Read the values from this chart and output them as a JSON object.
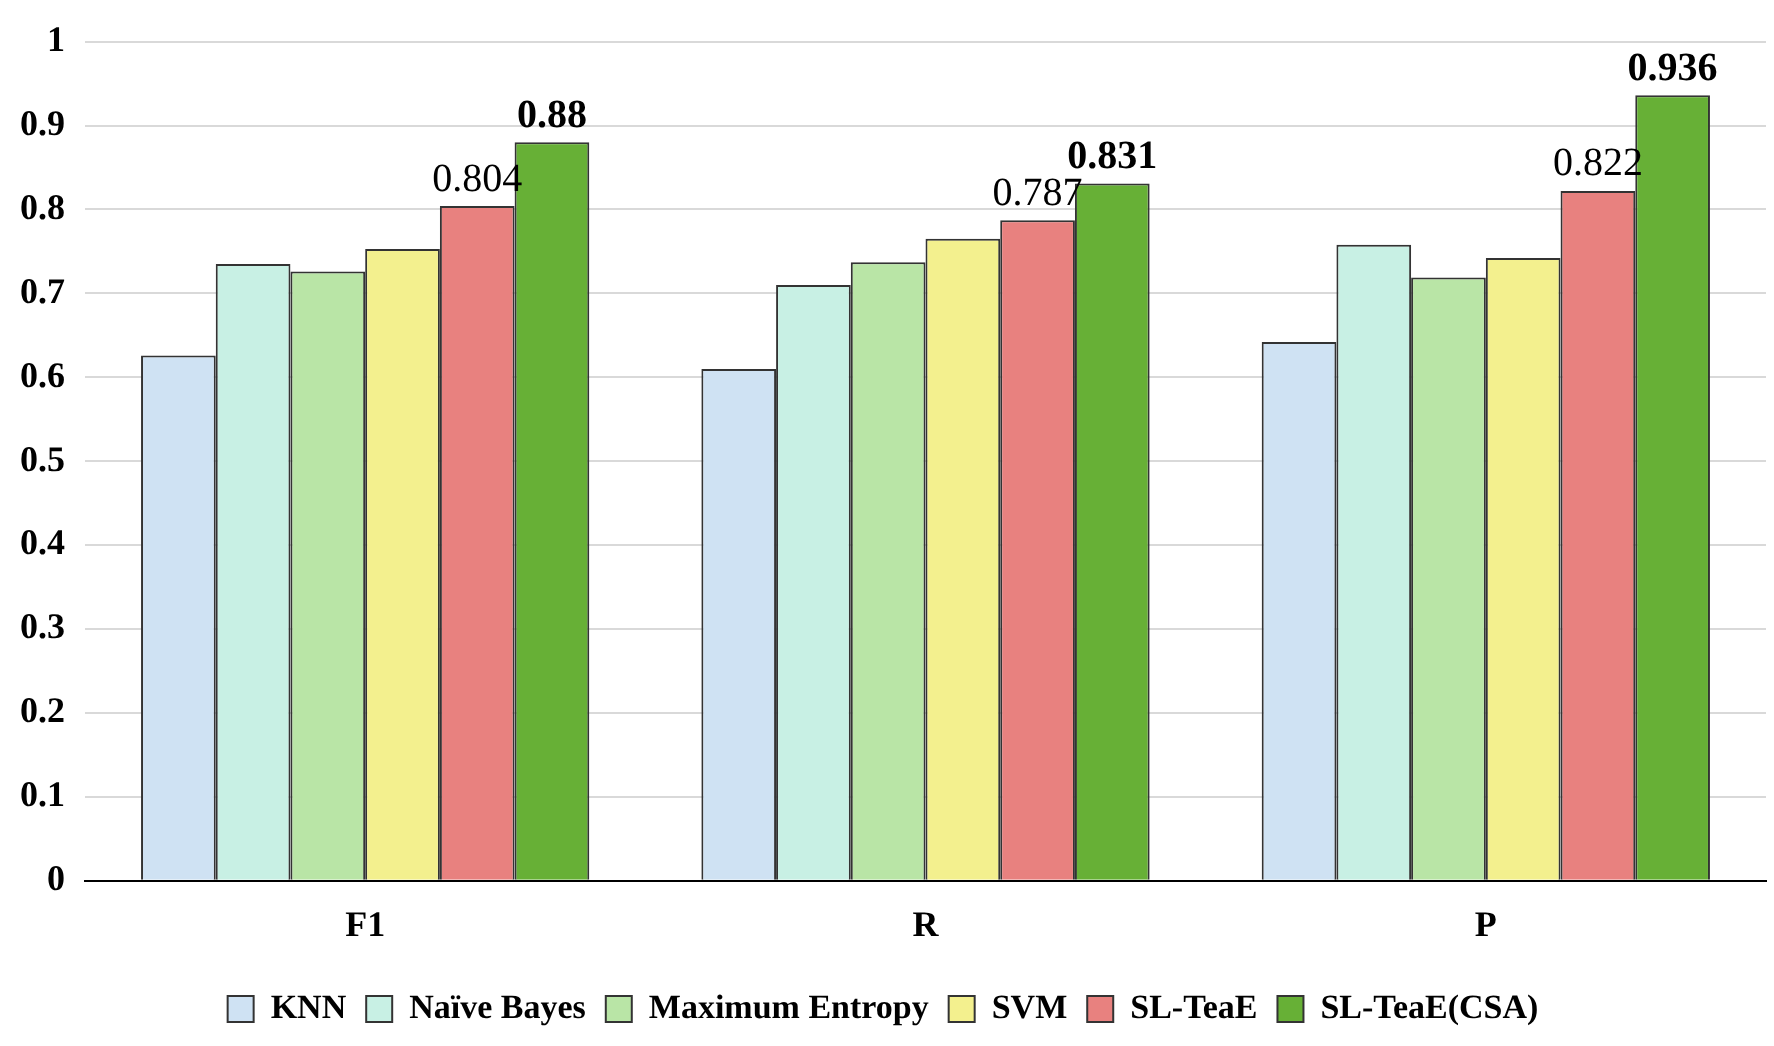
{
  "chart_data": {
    "type": "bar",
    "categories": [
      "F1",
      "R",
      "P"
    ],
    "series": [
      {
        "name": "KNN",
        "color": "#cfe2f3",
        "values": [
          0.626,
          0.61,
          0.642
        ]
      },
      {
        "name": "Naïve Bayes",
        "color": "#c8f0e4",
        "values": [
          0.735,
          0.71,
          0.758
        ]
      },
      {
        "name": "Maximum Entropy",
        "color": "#b9e5a6",
        "values": [
          0.726,
          0.737,
          0.719
        ]
      },
      {
        "name": "SVM",
        "color": "#f3f08e",
        "values": [
          0.753,
          0.765,
          0.742
        ]
      },
      {
        "name": "SL-TeaE",
        "color": "#e8817f",
        "values": [
          0.804,
          0.787,
          0.822
        ],
        "value_labels": [
          "0.804",
          "0.787",
          "0.822"
        ]
      },
      {
        "name": "SL-TeaE(CSA)",
        "color": "#67b036",
        "values": [
          0.88,
          0.831,
          0.936
        ],
        "value_labels": [
          "0.88",
          "0.831",
          "0.936"
        ]
      }
    ],
    "ylim": [
      0,
      1
    ],
    "yticks": [
      0,
      0.1,
      0.2,
      0.3,
      0.4,
      0.5,
      0.6,
      0.7,
      0.8,
      0.9,
      1
    ],
    "grid": "y",
    "legend": "bottom"
  }
}
